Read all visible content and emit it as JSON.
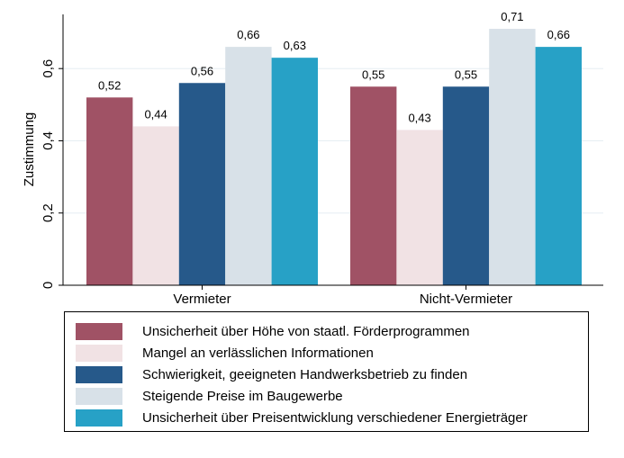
{
  "chart_data": {
    "type": "bar",
    "ylabel": "Zustimmung",
    "ylim": [
      0,
      0.75
    ],
    "yticks": [
      0,
      0.2,
      0.4,
      0.6
    ],
    "ytick_labels": [
      "0",
      "0,2",
      "0,4",
      "0,6"
    ],
    "categories": [
      "Vermieter",
      "Nicht-Vermieter"
    ],
    "series": [
      {
        "name": "Unsicherheit über Höhe von staatl. Förderprogrammen",
        "color": "#a05265",
        "values": [
          0.52,
          0.55
        ],
        "labels": [
          "0,52",
          "0,55"
        ]
      },
      {
        "name": "Mangel an verlässlichen Informationen",
        "color": "#f1e2e4",
        "values": [
          0.44,
          0.43
        ],
        "labels": [
          "0,44",
          "0,43"
        ]
      },
      {
        "name": "Schwierigkeit, geeigneten Handwerksbetrieb zu finden",
        "color": "#26598a",
        "values": [
          0.56,
          0.55
        ],
        "labels": [
          "0,56",
          "0,55"
        ]
      },
      {
        "name": "Steigende Preise im Baugewerbe",
        "color": "#d8e1e8",
        "values": [
          0.66,
          0.71
        ],
        "labels": [
          "0,66",
          "0,71"
        ]
      },
      {
        "name": "Unsicherheit über Preisentwicklung verschiedener Energieträger",
        "color": "#27a1c6",
        "values": [
          0.63,
          0.66
        ],
        "labels": [
          "0,63",
          "0,66"
        ]
      }
    ],
    "legend_position": "bottom",
    "grid": true
  }
}
